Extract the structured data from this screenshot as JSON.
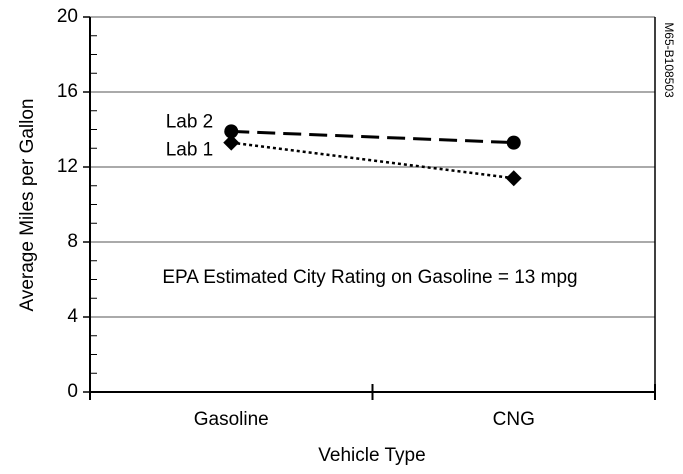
{
  "chart_data": {
    "type": "line",
    "x_label": "Vehicle Type",
    "y_label": "Average Miles per Gallon",
    "categories": [
      "Gasoline",
      "CNG"
    ],
    "series": [
      {
        "name": "Lab 2",
        "color": "#000000",
        "marker": "circle",
        "dash": "dashed",
        "values": [
          13.9,
          13.3
        ]
      },
      {
        "name": "Lab 1",
        "color": "#000000",
        "marker": "diamond",
        "dash": "dotted",
        "values": [
          13.3,
          11.4
        ]
      }
    ],
    "ylim": [
      0,
      20
    ],
    "yticks": [
      0,
      4,
      8,
      12,
      16,
      20
    ],
    "y_minor_ticks": [
      1,
      2,
      3,
      5,
      6,
      7,
      9,
      10,
      11,
      13,
      14,
      15,
      17,
      18,
      19
    ],
    "grid": true,
    "annotation": "EPA Estimated City Rating on Gasoline = 13 mpg",
    "figure_id": "M65-B108503"
  }
}
